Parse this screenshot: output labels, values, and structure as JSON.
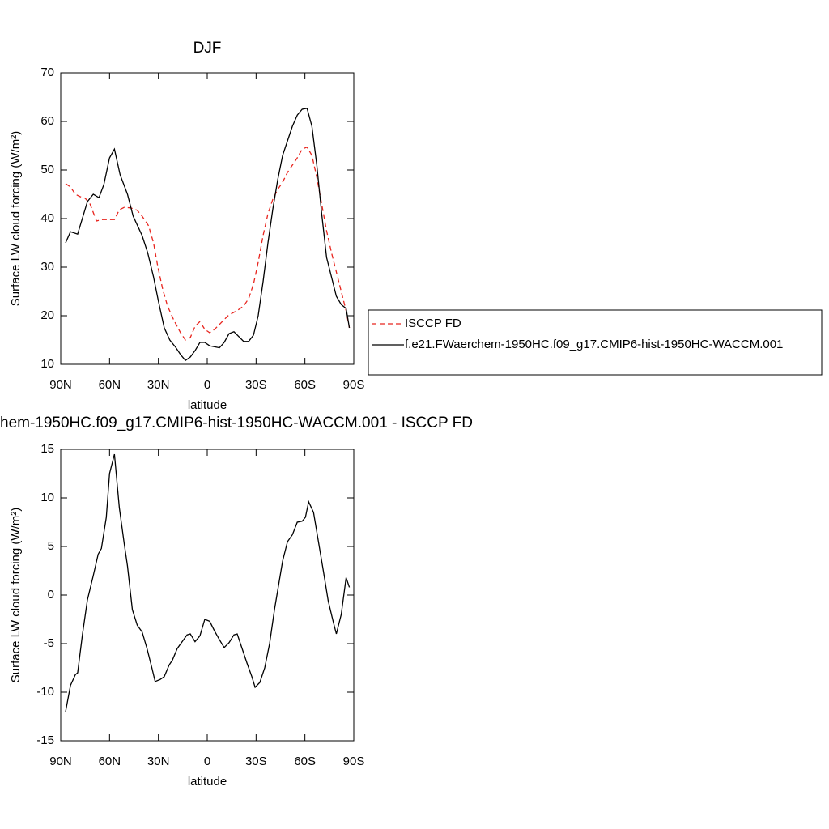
{
  "chart_data": [
    {
      "type": "line",
      "title": "DJF",
      "xlabel": "latitude",
      "ylabel": "Surface LW cloud forcing (W/m²)",
      "xlim": [
        90,
        -90
      ],
      "xticks": [
        {
          "value": 90,
          "label": "90N"
        },
        {
          "value": 60,
          "label": "60N"
        },
        {
          "value": 30,
          "label": "30N"
        },
        0,
        {
          "value": -30,
          "label": "30S"
        },
        {
          "value": -60,
          "label": "60S"
        },
        {
          "value": -90,
          "label": "90S"
        }
      ],
      "ylim": [
        10,
        70
      ],
      "yticks": [
        10,
        20,
        30,
        40,
        50,
        60,
        70
      ],
      "legend": "right",
      "series": [
        {
          "name": "ISCCP FD",
          "color": "#e8251e",
          "dash": "dashed",
          "x": [
            87,
            84,
            81,
            78,
            75,
            72,
            68,
            64.4,
            60,
            57,
            54,
            51,
            47,
            43,
            40,
            36,
            33,
            30.3,
            27.4,
            24.4,
            20.4,
            16.4,
            13.4,
            10.4,
            7.5,
            4.5,
            1.5,
            -1.5,
            -4.5,
            -7.5,
            -10.4,
            -13.4,
            -16.4,
            -19.4,
            -22.4,
            -25.4,
            -28.4,
            -31.3,
            -34.3,
            -37.3,
            -40.3,
            -43.3,
            -46.3,
            -49.3,
            -52.3,
            -55.3,
            -58.3,
            -61.3,
            -64.3,
            -67.3,
            -70.3,
            -73.3,
            -76.3,
            -79.3,
            -82.3,
            -85.3,
            -87.3
          ],
          "values": [
            47.2,
            46.5,
            45,
            44.5,
            44.2,
            43,
            39.5,
            39.8,
            39.8,
            39.8,
            41.8,
            42.3,
            42.2,
            41.7,
            40.5,
            38.5,
            35,
            30,
            25.5,
            22,
            19,
            16.5,
            15,
            15.5,
            17.8,
            18.8,
            17.2,
            16.5,
            17.2,
            18.2,
            19.2,
            20.2,
            20.7,
            21.3,
            22,
            23.5,
            26.5,
            31,
            36.5,
            41,
            44,
            46,
            47.5,
            49.5,
            51,
            52.5,
            54.3,
            54.7,
            53,
            48.5,
            43,
            37.5,
            33,
            29,
            25,
            21,
            17.5
          ]
        },
        {
          "name": "f.e21.FWaerchem-1950HC.f09_g17.CMIP6-hist-1950HC-WACCM.001",
          "color": "#000000",
          "dash": "solid",
          "x": [
            87,
            84,
            79.6,
            73.6,
            70,
            66.5,
            63.5,
            60,
            57,
            53.5,
            49,
            45.5,
            40,
            36.6,
            33,
            30,
            26.4,
            23,
            19.4,
            16.4,
            13.4,
            10.4,
            7.5,
            4.5,
            1.5,
            -1.5,
            -4.5,
            -7.5,
            -10.4,
            -13.4,
            -16.4,
            -19.4,
            -22.4,
            -25.4,
            -28.4,
            -31.3,
            -34.3,
            -37.3,
            -40.3,
            -43.3,
            -46.3,
            -49.3,
            -52.3,
            -55.3,
            -58.3,
            -61.3,
            -64.3,
            -67.3,
            -70.3,
            -73.3,
            -76.3,
            -79.3,
            -82.3,
            -85.3,
            -87.3
          ],
          "values": [
            35,
            37.3,
            36.8,
            43.5,
            45,
            44.3,
            47,
            52.5,
            54.3,
            49,
            45,
            40.5,
            36.5,
            33,
            28,
            23,
            17.5,
            15,
            13.5,
            12,
            10.8,
            11.5,
            12.8,
            14.5,
            14.5,
            13.8,
            13.6,
            13.4,
            14.5,
            16.3,
            16.7,
            15.7,
            14.7,
            14.7,
            16,
            20,
            27,
            35,
            42,
            48,
            53,
            56,
            59,
            61.3,
            62.5,
            62.7,
            59,
            51,
            41,
            32,
            28,
            24,
            22.3,
            21.5,
            17.5
          ]
        }
      ]
    },
    {
      "type": "line",
      "title": "hem-1950HC.f09_g17.CMIP6-hist-1950HC-WACCM.001 - ISCCP FD",
      "xlabel": "latitude",
      "ylabel": "Surface LW cloud forcing (W/m²)",
      "xlim": [
        90,
        -90
      ],
      "xticks": [
        {
          "value": 90,
          "label": "90N"
        },
        {
          "value": 60,
          "label": "60N"
        },
        {
          "value": 30,
          "label": "30N"
        },
        0,
        {
          "value": -30,
          "label": "30S"
        },
        {
          "value": -60,
          "label": "60S"
        },
        {
          "value": -90,
          "label": "90S"
        }
      ],
      "ylim": [
        -15,
        15
      ],
      "yticks": [
        -15,
        -10,
        -5,
        0,
        5,
        10,
        15
      ],
      "series": [
        {
          "color": "#000000",
          "dash": "solid",
          "x": [
            87,
            84,
            81,
            79.6,
            76.6,
            73.6,
            70,
            67,
            65,
            62,
            60,
            57,
            54,
            51,
            49,
            46,
            43,
            40,
            37,
            34,
            32,
            29,
            26.4,
            23.4,
            21.4,
            18.4,
            15.4,
            12.4,
            10.4,
            7.5,
            4.5,
            1.5,
            -1.5,
            -4.5,
            -7.5,
            -10.4,
            -13.4,
            -16.4,
            -18.4,
            -21.4,
            -24.4,
            -27.4,
            -29.4,
            -32.3,
            -35.3,
            -38.3,
            -41.3,
            -44.3,
            -46.3,
            -49.3,
            -52.3,
            -55.3,
            -58.3,
            -60.3,
            -62.3,
            -65.3,
            -68.3,
            -71.3,
            -74.3,
            -77.3,
            -79.3,
            -82.3,
            -85.3,
            -87.3
          ],
          "values": [
            -12,
            -9.3,
            -8.2,
            -8,
            -4,
            -0.5,
            2,
            4.2,
            4.8,
            8,
            12.5,
            14.5,
            9,
            5.3,
            3,
            -1.5,
            -3.1,
            -3.8,
            -5.5,
            -7.5,
            -8.9,
            -8.7,
            -8.4,
            -7.2,
            -6.7,
            -5.5,
            -4.8,
            -4.1,
            -4,
            -4.8,
            -4.2,
            -2.5,
            -2.7,
            -3.7,
            -4.6,
            -5.4,
            -4.9,
            -4.1,
            -4,
            -5.5,
            -7,
            -8.4,
            -9.5,
            -9,
            -7.5,
            -5,
            -1.5,
            1.5,
            3.5,
            5.5,
            6.2,
            7.5,
            7.6,
            8,
            9.6,
            8.5,
            5.5,
            2.5,
            -0.6,
            -2.7,
            -4,
            -2,
            1.8,
            0.8
          ]
        }
      ]
    }
  ]
}
